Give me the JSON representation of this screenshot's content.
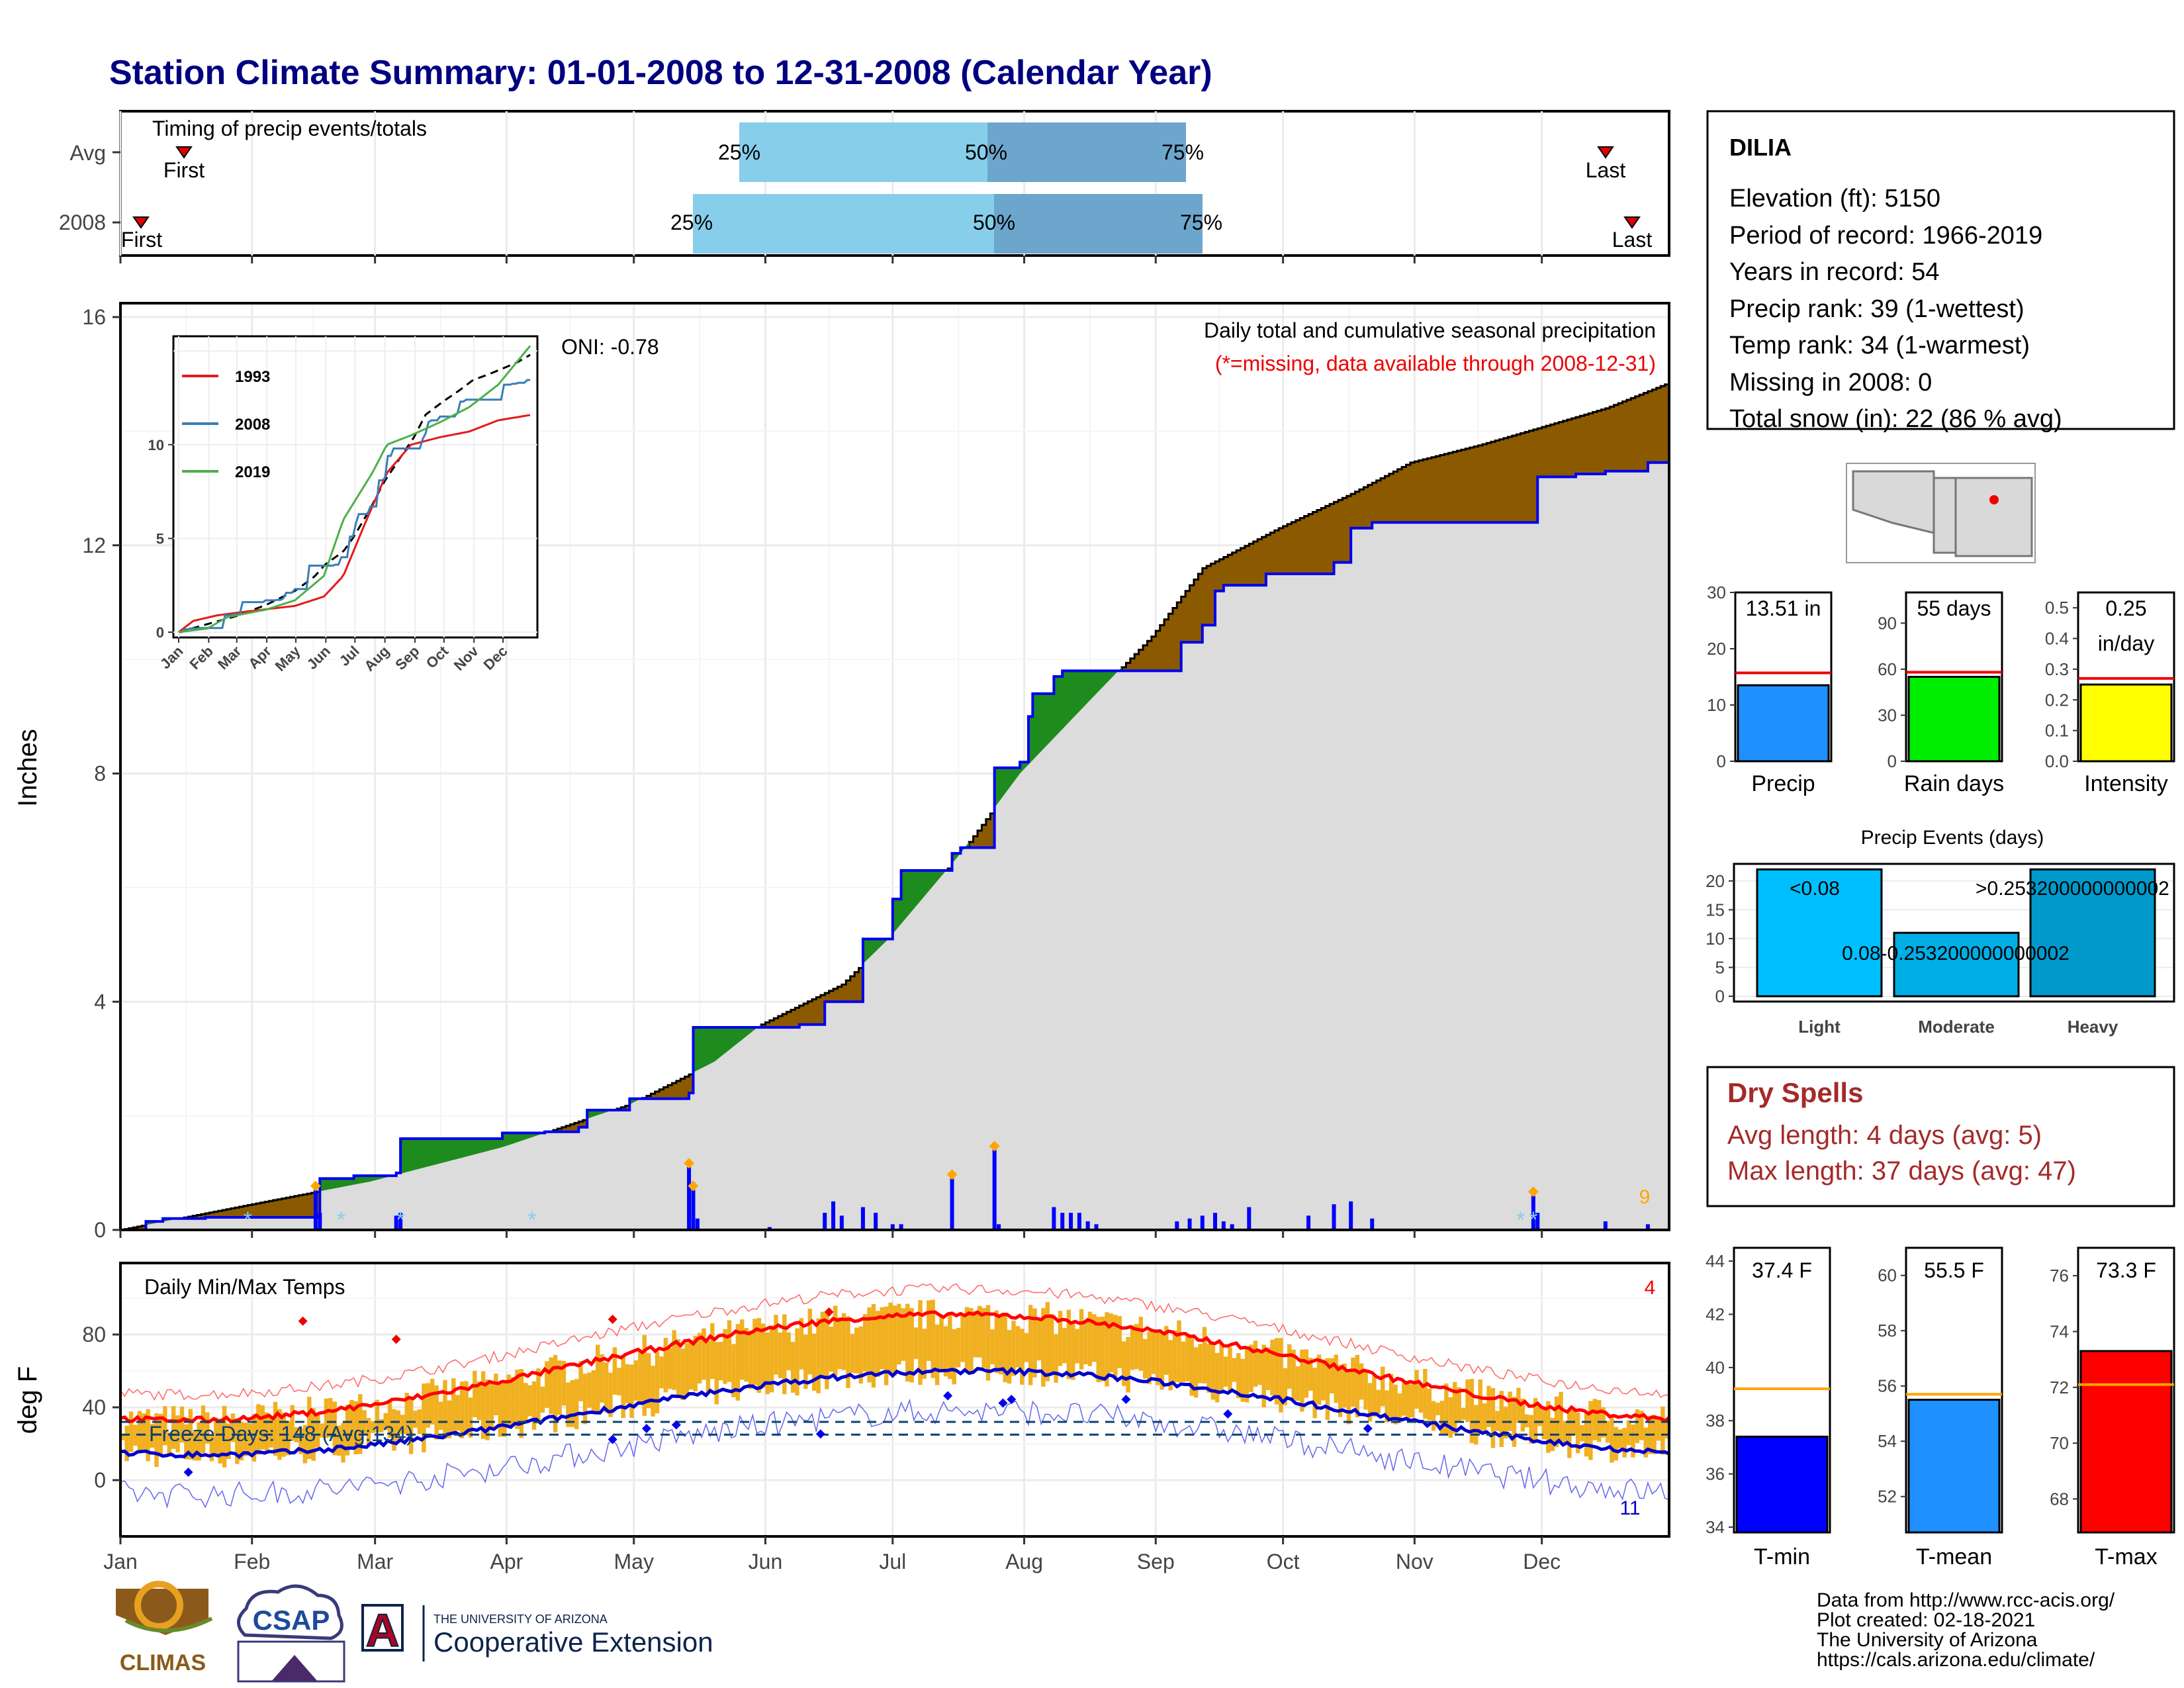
{
  "page": {
    "title": "Station Climate Summary: 01-01-2008 to 12-31-2008 (Calendar Year)"
  },
  "colors": {
    "title": "#000080",
    "cum_excess": "#8B5A00",
    "cum_deficit": "#1E8B1E",
    "current_line": "#0000EE",
    "shade": "#DCDCDC",
    "daily_bar": "#0000FF",
    "temp_bar": "#F0B020",
    "avg_max": "#FF0000",
    "avg_min": "#0000CC",
    "record_max": "#FF6666",
    "record_min": "#6666EE",
    "freeze_line": "#104070",
    "dry_spells": "#A52A2A",
    "precip_bar": "#1E90FF",
    "raindays_bar": "#00EE00",
    "intensity_bar": "#FFFF00",
    "events_light": "#00BFFF",
    "events_moderate": "#00AEE6",
    "events_heavy": "#0099CC",
    "tmin_bar": "#0000FF",
    "tmean_bar": "#1E90FF",
    "tmax_bar": "#FF0000",
    "avg_line_temp": "#FFA500",
    "marker_orange": "#FFA500",
    "marker_cyan": "#87CEEB"
  },
  "timing_panel": {
    "label": "Timing of precip events/totals",
    "rows": [
      "Avg",
      "2008"
    ],
    "first_label": "First",
    "last_label": "Last",
    "p25_label": "25%",
    "p50_label": "50%",
    "p75_label": "75%"
  },
  "main_panel": {
    "ylabel": "Inches",
    "yticks": [
      "0",
      "4",
      "8",
      "12",
      "16"
    ],
    "oni_label": "ONI: -0.78",
    "caption_line1": "Daily total and cumulative seasonal precipitation",
    "caption_line2": "(*=missing, data available through 2008-12-31)",
    "corner_count": "9"
  },
  "inset": {
    "legend": [
      "1993",
      "2008",
      "2019"
    ],
    "legend_colors": [
      "#E41A1C",
      "#377EB8",
      "#4DAF4A"
    ],
    "yticks": [
      "0",
      "5",
      "10"
    ],
    "months": [
      "Jan",
      "Feb",
      "Mar",
      "Apr",
      "May",
      "Jun",
      "Jul",
      "Aug",
      "Sep",
      "Oct",
      "Nov",
      "Dec"
    ]
  },
  "temp_panel": {
    "ylabel": "deg F",
    "label": "Daily Min/Max Temps",
    "freeze_label": "Freeze Days: 148 (Avg:134)",
    "yticks": [
      "0",
      "40",
      "80"
    ],
    "top_count": "4",
    "bottom_count": "11"
  },
  "x_axis": {
    "months": [
      "Jan",
      "Feb",
      "Mar",
      "Apr",
      "May",
      "Jun",
      "Jul",
      "Aug",
      "Sep",
      "Oct",
      "Nov",
      "Dec"
    ]
  },
  "station_box": {
    "name": "DILIA",
    "lines": [
      "Elevation (ft): 5150",
      "Period of record: 1966-2019",
      "Years in record: 54",
      "Precip rank: 39 (1-wettest)",
      "Temp rank: 34 (1-warmest)",
      "Missing in 2008: 0",
      "Total snow (in): 22 (86 % avg)"
    ]
  },
  "mini_bars": [
    {
      "label": "Precip",
      "value_text": "13.51 in",
      "value": 13.51,
      "avg": 15.7,
      "ymax": 30,
      "ticks": [
        "0",
        "10",
        "20",
        "30"
      ],
      "color": "#1E90FF"
    },
    {
      "label": "Rain days",
      "value_text": "55 days",
      "value": 55,
      "avg": 58,
      "ymax": 110,
      "ticks": [
        "0",
        "30",
        "60",
        "90"
      ],
      "color": "#00EE00"
    },
    {
      "label": "Intensity",
      "value_text": "0.25",
      "value_text2": "in/day",
      "value": 0.25,
      "avg": 0.27,
      "ymax": 0.55,
      "ticks": [
        "0.0",
        "0.1",
        "0.2",
        "0.3",
        "0.4",
        "0.5"
      ],
      "color": "#FFFF00"
    }
  ],
  "events_panel": {
    "title": "Precip Events (days)",
    "yticks": [
      "0",
      "5",
      "10",
      "15",
      "20"
    ],
    "categories": [
      "Light",
      "Moderate",
      "Heavy"
    ],
    "labels": [
      "<0.08",
      "0.08-0.253200000000002",
      ">0.253200000000002"
    ],
    "values": [
      22,
      11,
      22
    ]
  },
  "dry_spells": {
    "title": "Dry Spells",
    "avg_line": "Avg length: 4 days (avg: 5)",
    "max_line": "Max length: 37 days (avg: 47)"
  },
  "temp_bars": [
    {
      "label": "T-min",
      "value_text": "37.4 F",
      "value": 37.4,
      "avg": 39.2,
      "ymin": 33.8,
      "ymax": 44.5,
      "ticks": [
        "34",
        "36",
        "38",
        "40",
        "42",
        "44"
      ],
      "color": "#0000FF"
    },
    {
      "label": "T-mean",
      "value_text": "55.5 F",
      "value": 55.5,
      "avg": 55.7,
      "ymin": 50.7,
      "ymax": 61.0,
      "ticks": [
        "52",
        "54",
        "56",
        "58",
        "60"
      ],
      "color": "#1E90FF"
    },
    {
      "label": "T-max",
      "value_text": "73.3 F",
      "value": 73.3,
      "avg": 72.1,
      "ymin": 66.8,
      "ymax": 77.0,
      "ticks": [
        "68",
        "70",
        "72",
        "74",
        "76"
      ],
      "color": "#FF0000"
    }
  ],
  "credits": {
    "lines": [
      "Data from http://www.rcc-acis.org/",
      "Plot created: 02-18-2021",
      "The University of Arizona",
      "https://cals.arizona.edu/climate/"
    ],
    "logo_climas": "CLIMAS",
    "logo_csap": "CSAP",
    "logo_ua": "A",
    "ua_small": "THE UNIVERSITY OF ARIZONA",
    "ua_big": "Cooperative Extension"
  },
  "chart_data": {
    "type": "area",
    "title": "Station Climate Summary: 01-01-2008 to 12-31-2008 (Calendar Year)",
    "ylabel": "Inches",
    "ylim": [
      0,
      16
    ],
    "x_months": [
      "Jan",
      "Feb",
      "Mar",
      "Apr",
      "May",
      "Jun",
      "Jul",
      "Aug",
      "Sep",
      "Oct",
      "Nov",
      "Dec"
    ],
    "series": [
      {
        "name": "avg_cumulative",
        "x_day": [
          0,
          31,
          59,
          90,
          120,
          140,
          151,
          170,
          181,
          198,
          212,
          230,
          243,
          255,
          273,
          290,
          304,
          320,
          334,
          350,
          365
        ],
        "values": [
          0,
          0.45,
          0.85,
          1.45,
          2.2,
          2.95,
          3.6,
          4.3,
          5.1,
          6.6,
          8.0,
          9.4,
          10.4,
          11.6,
          12.3,
          12.9,
          13.45,
          13.75,
          14.05,
          14.4,
          14.85
        ]
      },
      {
        "name": "current_cumulative",
        "x_day": [
          0,
          6,
          10,
          20,
          30,
          46,
          47,
          55,
          65,
          66,
          70,
          80,
          90,
          100,
          108,
          110,
          118,
          120,
          134,
          135,
          150,
          160,
          166,
          170,
          175,
          178,
          182,
          184,
          196,
          198,
          200,
          206,
          207,
          212,
          214,
          215,
          220,
          222,
          225,
          228,
          238,
          249,
          250,
          255,
          258,
          260,
          266,
          270,
          280,
          286,
          290,
          295,
          311,
          318,
          333,
          334,
          343,
          350,
          360,
          365
        ],
        "values": [
          0,
          0.15,
          0.2,
          0.22,
          0.22,
          0.22,
          0.9,
          0.95,
          1.0,
          1.6,
          1.6,
          1.6,
          1.7,
          1.72,
          1.8,
          2.1,
          2.1,
          2.3,
          2.4,
          3.55,
          3.55,
          3.6,
          4.0,
          4.0,
          5.1,
          5.1,
          5.8,
          6.3,
          6.6,
          6.7,
          6.7,
          8.1,
          8.1,
          8.2,
          9.0,
          9.4,
          9.7,
          9.8,
          9.8,
          9.8,
          9.8,
          9.8,
          10.3,
          10.6,
          11.2,
          11.3,
          11.3,
          11.5,
          11.5,
          11.7,
          12.3,
          12.4,
          12.4,
          12.4,
          12.4,
          13.2,
          13.25,
          13.3,
          13.45,
          13.51
        ]
      }
    ],
    "daily_precip": {
      "x_day": [
        46,
        47,
        65,
        66,
        134,
        135,
        136,
        153,
        166,
        168,
        170,
        175,
        178,
        182,
        184,
        196,
        206,
        207,
        220,
        222,
        224,
        226,
        228,
        230,
        249,
        252,
        255,
        258,
        260,
        262,
        266,
        280,
        286,
        290,
        295,
        333,
        334,
        350,
        360
      ],
      "values": [
        0.7,
        0.3,
        0.25,
        0.3,
        1.1,
        0.7,
        0.2,
        0.05,
        0.3,
        0.5,
        0.25,
        0.4,
        0.3,
        0.1,
        0.1,
        0.9,
        1.4,
        0.1,
        0.4,
        0.3,
        0.3,
        0.3,
        0.15,
        0.1,
        0.15,
        0.2,
        0.25,
        0.3,
        0.15,
        0.1,
        0.4,
        0.25,
        0.45,
        0.5,
        0.2,
        0.6,
        0.3,
        0.15,
        0.1
      ]
    }
  }
}
